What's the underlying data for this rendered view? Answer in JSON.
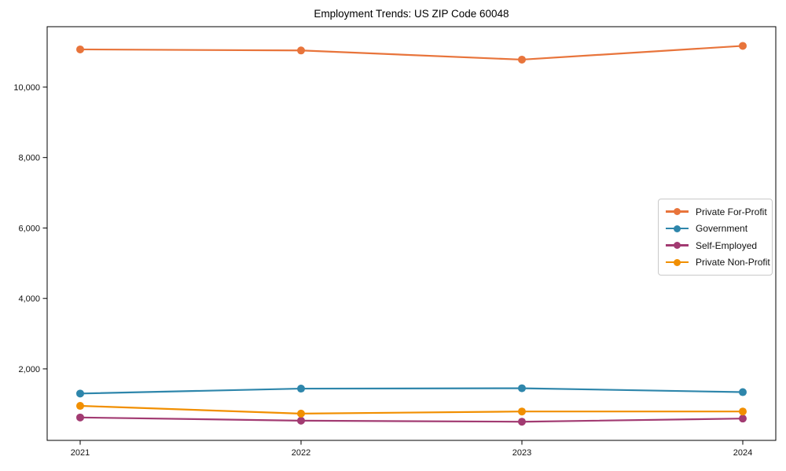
{
  "chart_data": {
    "type": "line",
    "title": "Employment Trends: US ZIP Code 60048",
    "xlabel": "",
    "ylabel": "",
    "x": [
      "2021",
      "2022",
      "2023",
      "2024"
    ],
    "series": [
      {
        "name": "Private For-Profit",
        "color": "#E8743B",
        "values": [
          11070,
          11040,
          10780,
          11170
        ]
      },
      {
        "name": "Government",
        "color": "#2E86AB",
        "values": [
          1300,
          1440,
          1450,
          1340
        ]
      },
      {
        "name": "Self-Employed",
        "color": "#A23B72",
        "values": [
          620,
          530,
          500,
          590
        ]
      },
      {
        "name": "Private Non-Profit",
        "color": "#F18F01",
        "values": [
          950,
          730,
          790,
          790
        ]
      }
    ],
    "ylim": [
      -30,
      11715
    ],
    "y_ticks": [
      2000,
      4000,
      6000,
      8000,
      10000
    ],
    "grid": false,
    "legend_position": "center-right",
    "marker": "circle",
    "axis_color": "#000000"
  }
}
